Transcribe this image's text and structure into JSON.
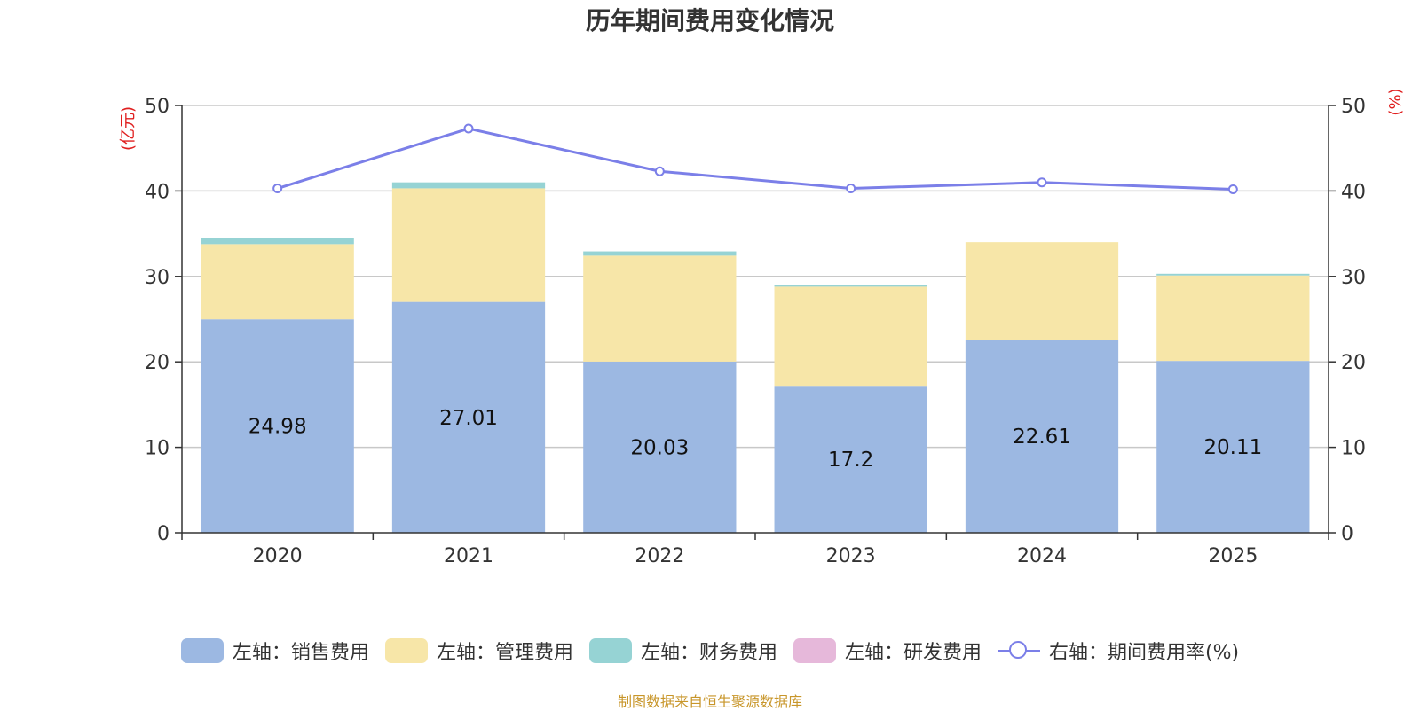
{
  "chart_data": {
    "type": "bar",
    "stacked": true,
    "title": "历年期间费用变化情况",
    "categories": [
      "2020",
      "2021",
      "2022",
      "2023",
      "2024",
      "2025"
    ],
    "left_axis": {
      "label": "(亿元)",
      "range": [
        0,
        50
      ],
      "ticks": [
        0,
        10,
        20,
        30,
        40,
        50
      ]
    },
    "right_axis": {
      "label": "(%)",
      "range": [
        0,
        50
      ],
      "ticks": [
        0,
        10,
        20,
        30,
        40,
        50
      ]
    },
    "series": [
      {
        "name": "左轴：销售费用",
        "type": "bar",
        "axis": "left",
        "color": "#9cb8e2",
        "values": [
          24.98,
          27.01,
          20.03,
          17.2,
          22.61,
          20.11
        ],
        "show_labels": true
      },
      {
        "name": "左轴：管理费用",
        "type": "bar",
        "axis": "left",
        "color": "#f7e6a8",
        "values": [
          8.8,
          13.3,
          12.4,
          11.6,
          11.4,
          10.0
        ]
      },
      {
        "name": "左轴：财务费用",
        "type": "bar",
        "axis": "left",
        "color": "#96d3d4",
        "values": [
          0.7,
          0.7,
          0.5,
          0.2,
          0.0,
          0.2
        ]
      },
      {
        "name": "左轴：研发费用",
        "type": "bar",
        "axis": "left",
        "color": "#e6b8da",
        "values": [
          0,
          0,
          0,
          0,
          0,
          0
        ]
      },
      {
        "name": "右轴：期间费用率(%)",
        "type": "line",
        "axis": "right",
        "color": "#7b7fe8",
        "values": [
          40.3,
          47.3,
          42.3,
          40.3,
          41.0,
          40.2
        ]
      }
    ],
    "grid": true
  },
  "source": "制图数据来自恒生聚源数据库"
}
